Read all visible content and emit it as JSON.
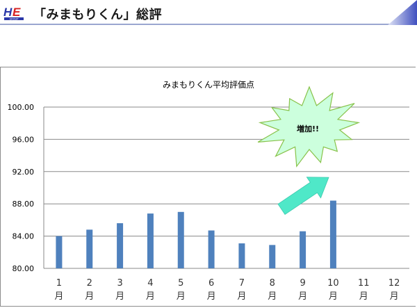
{
  "header": {
    "logo_text": "HE",
    "logo_subtext": "GROUP",
    "title": "「みまもりくん」総評"
  },
  "colors": {
    "bar": "#4f81bd",
    "burst_fill": "#ccffdd",
    "burst_stroke": "#88c24a",
    "arrow": "#4fe8c8",
    "header_accent": "#3f4fbf"
  },
  "chart_data": {
    "type": "bar",
    "title": "みまもりくん平均評価点",
    "categories": [
      "1月",
      "2月",
      "3月",
      "4月",
      "5月",
      "6月",
      "7月",
      "8月",
      "9月",
      "10月",
      "11月",
      "12月"
    ],
    "category_number_labels": [
      "1",
      "2",
      "3",
      "4",
      "5",
      "6",
      "7",
      "8",
      "9",
      "10",
      "11",
      "12"
    ],
    "category_unit_label": "月",
    "values": [
      84.0,
      84.8,
      85.6,
      86.8,
      87.0,
      84.7,
      83.1,
      82.9,
      84.6,
      88.4,
      null,
      null
    ],
    "ylim": [
      80.0,
      100.0
    ],
    "yticks": [
      "80.00",
      "84.00",
      "88.00",
      "92.00",
      "96.00",
      "100.00"
    ],
    "grid": true,
    "legend": "none",
    "annotation": {
      "text": "増加!!",
      "shape": "explosion-burst",
      "arrow": "up-right arrow pointing toward the 10月 bar"
    }
  }
}
